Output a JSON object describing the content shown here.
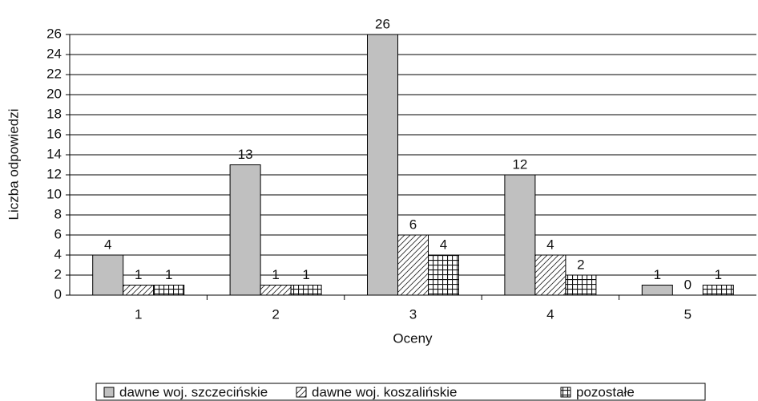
{
  "chart_data": {
    "type": "bar",
    "categories": [
      "1",
      "2",
      "3",
      "4",
      "5"
    ],
    "series": [
      {
        "name": "dawne woj. szczecińskie",
        "color": "#c0c0c0",
        "fill_style": "solid",
        "values": [
          4,
          13,
          26,
          12,
          1
        ]
      },
      {
        "name": "dawne woj. koszalińskie",
        "color": "#ffffff",
        "fill_style": "hatch",
        "values": [
          1,
          1,
          6,
          4,
          0
        ]
      },
      {
        "name": "pozostałe",
        "color": "#ffffff",
        "fill_style": "grid",
        "values": [
          1,
          1,
          4,
          2,
          1
        ]
      }
    ],
    "x_label": "Oceny",
    "y_label": "Liczba odpowiedzi",
    "ylim": [
      0,
      26
    ],
    "yticks": [
      0,
      2,
      4,
      6,
      8,
      10,
      12,
      14,
      16,
      18,
      20,
      22,
      24,
      26
    ],
    "grid": true,
    "legend": "bottom"
  }
}
